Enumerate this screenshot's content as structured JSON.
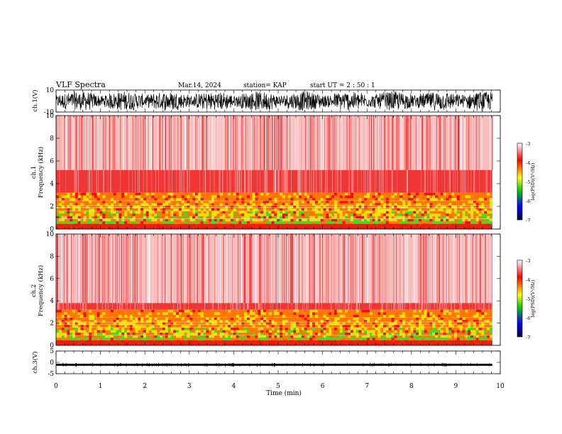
{
  "header": {
    "title": "VLF Spectra",
    "date": "Mar.14, 2024",
    "station": "station= KAP",
    "start_ut": "start  UT  =   2  : 50 : 1"
  },
  "chart_data": [
    {
      "type": "line",
      "name": "ch.1 waveform",
      "ylabel": "ch.1(V)",
      "ylim": [
        -10,
        10
      ],
      "y_ticks": [
        "10",
        "-10"
      ],
      "xlim": [
        0,
        10
      ],
      "data_extent_min": [
        0,
        9.82
      ]
    },
    {
      "type": "heatmap",
      "name": "ch.1 spectrogram",
      "ylabel_channel": "ch.1",
      "ylabel": "Frequency  (kHz)",
      "ylim": [
        0,
        10
      ],
      "y_ticks": [
        "0",
        "2",
        "4",
        "6",
        "8",
        "10"
      ],
      "xlim": [
        0,
        10
      ],
      "colorbar": {
        "label": "log(PSD)(V²/Hz)",
        "range": [
          -7,
          -3
        ],
        "ticks": [
          "-3",
          "-4",
          "-5",
          "-6",
          "-7"
        ]
      },
      "bands_khz": {
        "dense_orange_yellow_green": [
          0,
          3.2
        ],
        "red": [
          3.2,
          5.2
        ],
        "speckled_red_white": [
          5.2,
          10
        ]
      }
    },
    {
      "type": "heatmap",
      "name": "ch.2 spectrogram",
      "ylabel_channel": "ch.2",
      "ylabel": "Frequency  (kHz)",
      "ylim": [
        0,
        10
      ],
      "y_ticks": [
        "0",
        "2",
        "4",
        "6",
        "8",
        "10"
      ],
      "xlim": [
        0,
        10
      ],
      "colorbar": {
        "label": "log(PSD)(V²/Hz)",
        "range": [
          -7,
          -3
        ],
        "ticks": [
          "-3",
          "-4",
          "-5",
          "-6",
          "-7"
        ]
      },
      "bands_khz": {
        "dense_orange_yellow_green": [
          0,
          3.2
        ],
        "red": [
          3.2,
          3.8
        ],
        "speckled_red_white": [
          3.8,
          10
        ]
      }
    },
    {
      "type": "line",
      "name": "ch.3 waveform",
      "ylabel": "ch.3(V)",
      "ylim": [
        -5,
        5
      ],
      "y_ticks": [
        "5",
        "0",
        "-5"
      ],
      "xlim": [
        0,
        10
      ],
      "band_v": [
        -1.5,
        -0.6
      ]
    }
  ],
  "x_axis": {
    "label": "Time  (min)",
    "ticks": [
      "0",
      "1",
      "2",
      "3",
      "4",
      "5",
      "6",
      "7",
      "8",
      "9",
      "10"
    ]
  },
  "colors": {
    "waveform": "#000000",
    "spec_background": "#ffffff",
    "spec_red": "#ee1111",
    "spec_orange": "#ff7700",
    "spec_yellow": "#f0e000",
    "spec_green": "#40dd20",
    "colorbar_stops": [
      "#ffffff",
      "#ff0000",
      "#ffff00",
      "#00cc00",
      "#0000ff",
      "#000040"
    ]
  }
}
